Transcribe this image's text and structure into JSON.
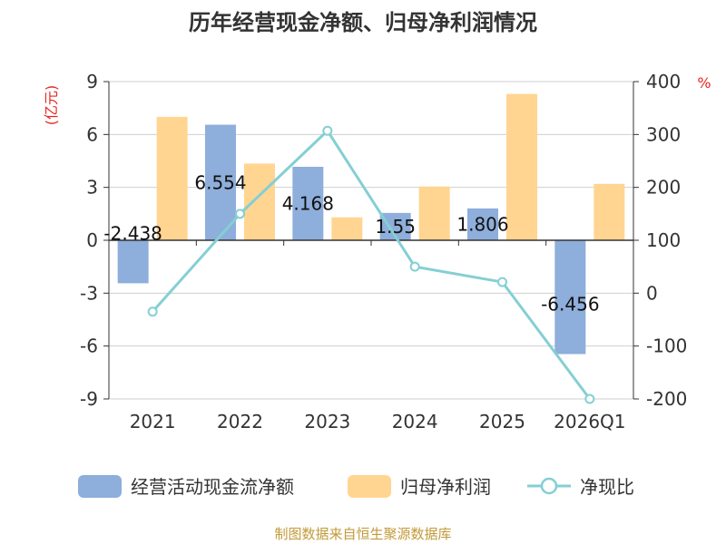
{
  "chart_data": {
    "type": "bar",
    "title": "历年经营现金净额、归母净利润情况",
    "categories": [
      "2021",
      "2022",
      "2023",
      "2024",
      "2025",
      "2026Q1"
    ],
    "left_axis": {
      "unit": "(亿元)",
      "ylim": [
        -9,
        9
      ],
      "ticks": [
        "9",
        "6",
        "3",
        "0",
        "-3",
        "-6",
        "-9"
      ]
    },
    "right_axis": {
      "unit": "%",
      "ylim": [
        -200,
        400
      ],
      "ticks": [
        "400",
        "300",
        "200",
        "100",
        "0",
        "-100",
        "-200"
      ]
    },
    "series": [
      {
        "name": "经营活动现金流净额",
        "type": "bar",
        "axis": "left",
        "color": "#8eaedb",
        "values": [
          -2.438,
          6.554,
          4.168,
          1.55,
          1.806,
          -6.456
        ],
        "labels": [
          "-2.438",
          "6.554",
          "4.168",
          "1.55",
          "1.806",
          "-6.456"
        ]
      },
      {
        "name": "归母净利润",
        "type": "bar",
        "axis": "left",
        "color": "#ffd591",
        "values": [
          7.0,
          4.35,
          1.3,
          3.05,
          8.3,
          3.2
        ]
      },
      {
        "name": "净现比",
        "type": "line",
        "axis": "right",
        "color": "#84cfd4",
        "values": [
          -35,
          150,
          307,
          50,
          21,
          -200
        ]
      }
    ]
  },
  "source": "制图数据来自恒生聚源数据库"
}
